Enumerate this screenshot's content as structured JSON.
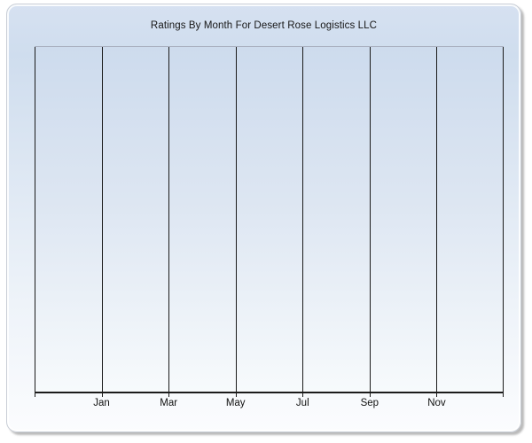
{
  "window": {
    "background": "#ffffff"
  },
  "chart_data": {
    "type": "line",
    "title": "Ratings By Month For Desert Rose Logistics LLC",
    "xlabel": "",
    "ylabel": "",
    "x_tick_labels": [
      "Jan",
      "Mar",
      "May",
      "Jul",
      "Sep",
      "Nov"
    ],
    "x_tick_positions_pct": [
      14.2857,
      28.5714,
      42.8571,
      57.1429,
      71.4286,
      85.7143
    ],
    "gridline_positions_pct": [
      0,
      14.2857,
      28.5714,
      42.8571,
      57.1429,
      71.4286,
      85.7143,
      100
    ],
    "y_tick_labels": [],
    "series": [],
    "no_data_rendered": true,
    "grid": "vertical-only",
    "legend": "none",
    "axis_note": "x axis spans 14 months with a gridline every 2 months; only interior gridlines are labeled Jan through Nov; no y-axis ticks or labels; no plotted data"
  },
  "colors": {
    "panel_gradient_top": "#d2dfef",
    "panel_gradient_bottom": "#fbfcfe",
    "plot_gradient_top": "#cddbed",
    "plot_gradient_bottom": "#f7fafc",
    "gridline": "#1b1b1b",
    "axis": "#1b1b1b",
    "plot_top_border": "#a9b0c0",
    "title_text": "#161616",
    "tick_label_text": "#111111",
    "panel_shadow": "#828282"
  }
}
